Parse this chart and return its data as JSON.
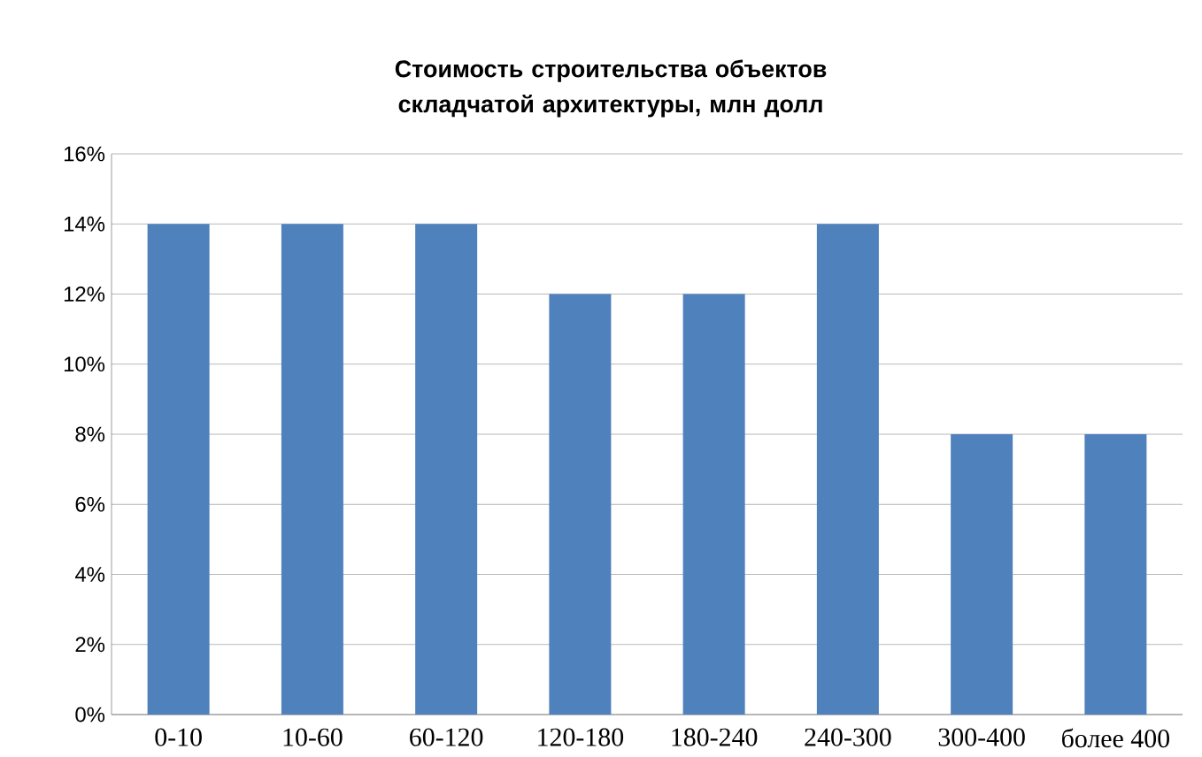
{
  "chart_data": {
    "type": "bar",
    "title": "Стоимость строительства объектов складчатой архитектуры, млн долл",
    "categories": [
      "0-10",
      "10-60",
      "60-120",
      "120-180",
      "180-240",
      "240-300",
      "300-400",
      "более 400"
    ],
    "values": [
      14,
      14,
      14,
      12,
      12,
      14,
      8,
      8
    ],
    "color": "#4f81bd",
    "ylim": [
      0,
      16
    ],
    "yticks": [
      {
        "value": 0,
        "label": "0%"
      },
      {
        "value": 2,
        "label": "2%"
      },
      {
        "value": 4,
        "label": "4%"
      },
      {
        "value": 6,
        "label": "6%"
      },
      {
        "value": 8,
        "label": "8%"
      },
      {
        "value": 10,
        "label": "10%"
      },
      {
        "value": 12,
        "label": "12%"
      },
      {
        "value": 14,
        "label": "14%"
      },
      {
        "value": 16,
        "label": "16%"
      }
    ],
    "grid": "y"
  }
}
